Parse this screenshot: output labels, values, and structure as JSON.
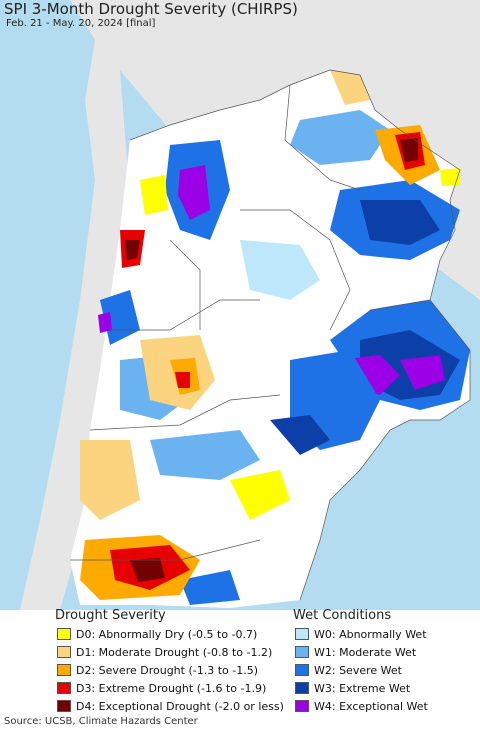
{
  "title": "SPI 3-Month Drought Severity (CHIRPS)",
  "subtitle": "Feb. 21 - May. 20, 2024 [final]",
  "legend": {
    "drought_title": "Drought Severity",
    "wet_title": "Wet Conditions",
    "drought": [
      {
        "label": "D0: Abnormally Dry (-0.5 to -0.7)",
        "color": "#ffff00"
      },
      {
        "label": "D1: Moderate Drought (-0.8 to -1.2)",
        "color": "#fcd37f"
      },
      {
        "label": "D2: Severe Drought (-1.3 to -1.5)",
        "color": "#ffaa00"
      },
      {
        "label": "D3: Extreme Drought (-1.6 to -1.9)",
        "color": "#e60000"
      },
      {
        "label": "D4: Exceptional Drought (-2.0 or less)",
        "color": "#730000"
      }
    ],
    "wet": [
      {
        "label": "W0: Abnormally Wet",
        "color": "#bde8fb"
      },
      {
        "label": "W1: Moderate Wet",
        "color": "#6bb3f0"
      },
      {
        "label": "W2: Severe Wet",
        "color": "#1e72e6"
      },
      {
        "label": "W3: Extreme Wet",
        "color": "#0d3fa8"
      },
      {
        "label": "W4: Exceptional Wet",
        "color": "#9b00e6"
      }
    ]
  },
  "source": "Source: UCSB, Climate Hazards Center",
  "colors": {
    "ocean": "#b4dcf0",
    "land": "#ffffff",
    "outside_land": "#e6e6e6",
    "border": "#555555"
  }
}
